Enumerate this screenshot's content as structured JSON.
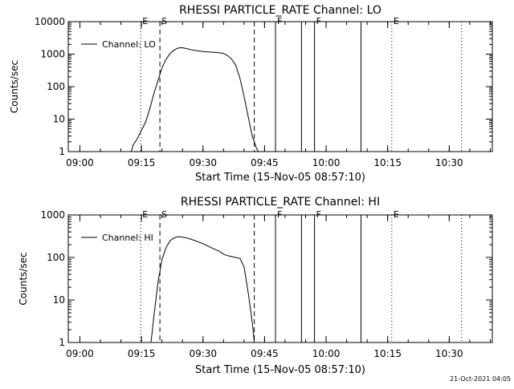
{
  "stamp": "21-Oct-2021 04:05",
  "chart_data": [
    {
      "type": "line",
      "title": "RHESSI PARTICLE_RATE Channel: LO",
      "xlabel": "Start Time (15-Nov-05 08:57:10)",
      "ylabel": "Counts/sec",
      "y_scale": "log",
      "ylim": [
        1,
        10000
      ],
      "y_ticks": [
        "1",
        "10",
        "100",
        "1000",
        "10000"
      ],
      "xlim": [
        "08:57:10",
        "10:40:30"
      ],
      "x_ticks": [
        "09:00",
        "09:15",
        "09:30",
        "09:45",
        "10:00",
        "10:15",
        "10:30"
      ],
      "legend": "top-left",
      "series": [
        {
          "name": "Channel: LO",
          "x": [
            "09:12:30",
            "09:13:00",
            "09:14:00",
            "09:15:00",
            "09:16:00",
            "09:17:00",
            "09:18:00",
            "09:19:00",
            "09:20:00",
            "09:21:00",
            "09:22:00",
            "09:23:00",
            "09:24:00",
            "09:25:00",
            "09:26:00",
            "09:27:00",
            "09:28:00",
            "09:30:00",
            "09:32:00",
            "09:34:00",
            "09:35:00",
            "09:36:00",
            "09:37:00",
            "09:38:00",
            "09:39:00",
            "09:40:00",
            "09:41:00",
            "09:42:00",
            "09:43:00",
            "09:43:30"
          ],
          "y": [
            1,
            1.6,
            2.5,
            4.5,
            8,
            20,
            60,
            150,
            380,
            700,
            1050,
            1350,
            1550,
            1580,
            1480,
            1380,
            1300,
            1200,
            1150,
            1100,
            1050,
            900,
            700,
            450,
            180,
            50,
            12,
            3,
            1.3,
            1
          ]
        }
      ],
      "markers": [
        {
          "time": "09:14:50",
          "label": "E",
          "style": "dotted"
        },
        {
          "time": "09:19:30",
          "label": "S",
          "style": "dashed"
        },
        {
          "time": "09:42:30",
          "label": "",
          "style": "dashed"
        },
        {
          "time": "09:47:40",
          "label": "F",
          "style": "solid"
        },
        {
          "time": "09:54:00",
          "label": "",
          "style": "solid"
        },
        {
          "time": "09:57:10",
          "label": "F",
          "style": "solid"
        },
        {
          "time": "10:08:30",
          "label": "",
          "style": "solid"
        },
        {
          "time": "10:16:00",
          "label": "E",
          "style": "dotted"
        },
        {
          "time": "10:33:00",
          "label": "",
          "style": "dotted"
        }
      ]
    },
    {
      "type": "line",
      "title": "RHESSI PARTICLE_RATE Channel: HI",
      "xlabel": "Start Time (15-Nov-05 08:57:10)",
      "ylabel": "Counts/sec",
      "y_scale": "log",
      "ylim": [
        1,
        1000
      ],
      "y_ticks": [
        "1",
        "10",
        "100",
        "1000"
      ],
      "xlim": [
        "08:57:10",
        "10:40:30"
      ],
      "x_ticks": [
        "09:00",
        "09:15",
        "09:30",
        "09:45",
        "10:00",
        "10:15",
        "10:30"
      ],
      "legend": "top-left",
      "series": [
        {
          "name": "Channel: HI",
          "x": [
            "09:17:20",
            "09:18:00",
            "09:19:00",
            "09:20:00",
            "09:21:00",
            "09:22:00",
            "09:23:00",
            "09:24:00",
            "09:25:00",
            "09:26:00",
            "09:27:00",
            "09:28:00",
            "09:30:00",
            "09:32:00",
            "09:34:00",
            "09:35:00",
            "09:36:00",
            "09:37:00",
            "09:38:00",
            "09:39:00",
            "09:40:00",
            "09:41:00",
            "09:42:00",
            "09:42:30"
          ],
          "y": [
            1,
            4,
            25,
            90,
            170,
            250,
            290,
            310,
            300,
            290,
            270,
            250,
            210,
            170,
            140,
            120,
            110,
            105,
            100,
            95,
            60,
            15,
            3,
            1
          ]
        }
      ],
      "markers": [
        {
          "time": "09:14:50",
          "label": "E",
          "style": "dotted"
        },
        {
          "time": "09:19:30",
          "label": "S",
          "style": "dashed"
        },
        {
          "time": "09:42:30",
          "label": "",
          "style": "dashed"
        },
        {
          "time": "09:47:40",
          "label": "F",
          "style": "solid"
        },
        {
          "time": "09:54:00",
          "label": "",
          "style": "solid"
        },
        {
          "time": "09:57:10",
          "label": "F",
          "style": "solid"
        },
        {
          "time": "10:08:30",
          "label": "",
          "style": "solid"
        },
        {
          "time": "10:16:00",
          "label": "E",
          "style": "dotted"
        },
        {
          "time": "10:33:00",
          "label": "",
          "style": "dotted"
        }
      ]
    }
  ]
}
